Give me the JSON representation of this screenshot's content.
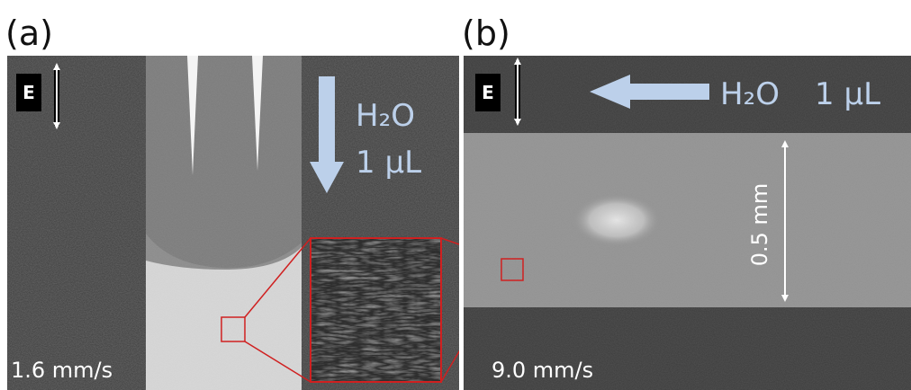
{
  "panels": [
    {
      "label": "(a)",
      "field_label": "E",
      "flow": {
        "substance": "H₂O",
        "volume": "1 µL"
      },
      "speed": "1.6 mm/s"
    },
    {
      "label": "(b)",
      "field_label": "E",
      "flow": {
        "substance": "H₂O",
        "volume": "1 µL"
      },
      "speed": "9.0 mm/s",
      "scale": "0.5 mm"
    }
  ]
}
